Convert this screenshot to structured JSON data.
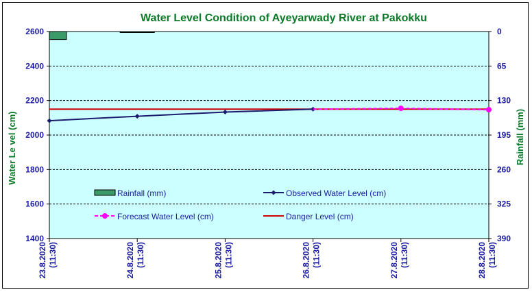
{
  "chart_data": {
    "type": "line",
    "title": "Water Level Condition  of Ayeyarwady  River at Pakokku",
    "ylabel_left": "Water Le vel (cm)",
    "ylabel_right": "Rainfall (mm)",
    "y_left_ticks": [
      "1400",
      "1600",
      "1800",
      "2000",
      "2200",
      "2400",
      "2600"
    ],
    "y_left_range": [
      1400,
      2600
    ],
    "y_right_ticks": [
      "0",
      "65",
      "130",
      "195",
      "260",
      "325",
      "390"
    ],
    "y_right_range": [
      0,
      390
    ],
    "categories": [
      "23.8.2020",
      "24.8.2020",
      "25.8.2020",
      "26.8.2020",
      "27.8.2020",
      "28.8.2020"
    ],
    "category_times": [
      "(11:30)",
      "(11:30)",
      "(11:30)",
      "(11:30)",
      "(11:30)",
      "(11:30)"
    ],
    "danger_level": 2150,
    "series": [
      {
        "name": "Rainfall (mm)",
        "type": "bar",
        "color": "#3a9a68",
        "axis": "right",
        "values": [
          15,
          1,
          null,
          null,
          null,
          null
        ]
      },
      {
        "name": "Observed Water Level (cm)",
        "type": "line",
        "color": "#1a1a6e",
        "axis": "left",
        "values": [
          2083,
          2109,
          2133,
          2150,
          null,
          null
        ]
      },
      {
        "name": "Forecast Water Level (cm)",
        "type": "line-dashed",
        "color": "#ff00ff",
        "axis": "left",
        "values": [
          null,
          null,
          null,
          2150,
          2155,
          2147
        ]
      },
      {
        "name": "Danger Level (cm)",
        "type": "hline",
        "color": "#cc0000",
        "axis": "left",
        "values": [
          2150,
          2150,
          2150,
          2150,
          2150,
          2150
        ]
      }
    ],
    "legend": {
      "rainfall": "Rainfall (mm)",
      "observed": "Observed Water Level (cm)",
      "forecast": "Forecast Water Level (cm)",
      "danger": "Danger Level (cm)"
    }
  },
  "colors": {
    "plot_bg": "#ccffff",
    "grid": "#000000",
    "title": "#0a7a28",
    "tick": "#1a1aa0",
    "danger": "#cc0000",
    "observed": "#1a1a6e",
    "forecast": "#ff00ff",
    "rainfall": "#3a9a68"
  }
}
